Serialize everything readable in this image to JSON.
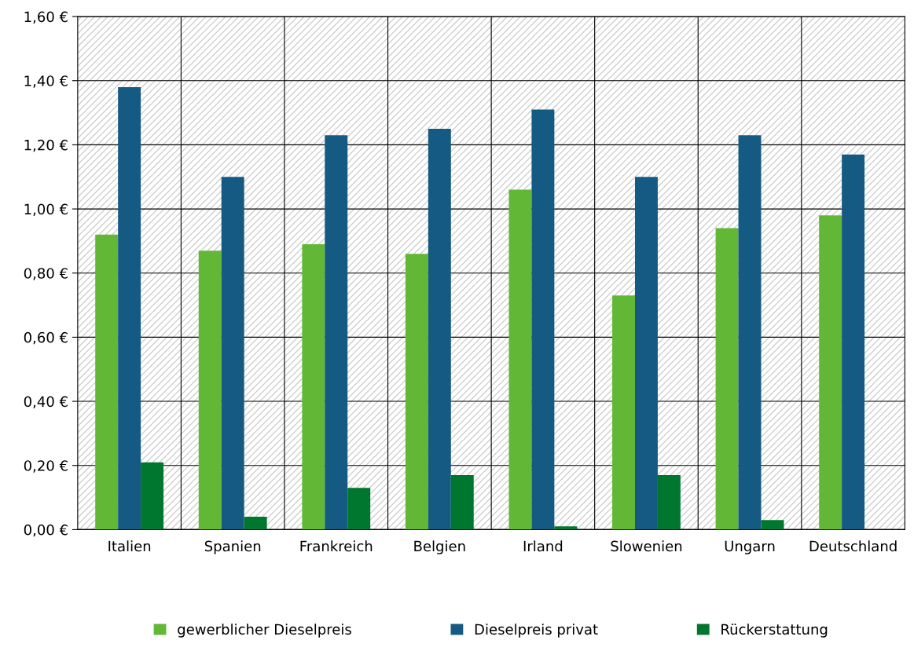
{
  "chart_data": {
    "type": "bar",
    "categories": [
      "Italien",
      "Spanien",
      "Frankreich",
      "Belgien",
      "Irland",
      "Slowenien",
      "Ungarn",
      "Deutschland"
    ],
    "series": [
      {
        "name": "gewerblicher Dieselpreis",
        "color": "#62b836",
        "values": [
          0.92,
          0.87,
          0.89,
          0.86,
          1.06,
          0.73,
          0.94,
          0.98
        ]
      },
      {
        "name": "Dieselpreis privat",
        "color": "#155a82",
        "values": [
          1.38,
          1.1,
          1.23,
          1.25,
          1.31,
          1.1,
          1.23,
          1.17
        ]
      },
      {
        "name": "Rückerstattung",
        "color": "#00772e",
        "values": [
          0.21,
          0.04,
          0.13,
          0.17,
          0.01,
          0.17,
          0.03,
          null
        ]
      }
    ],
    "ylim": [
      0,
      1.6
    ],
    "yticks": [
      {
        "value": 0,
        "label": "0,00 €"
      },
      {
        "value": 0.2,
        "label": "0,20 €"
      },
      {
        "value": 0.4,
        "label": "0,40 €"
      },
      {
        "value": 0.6,
        "label": "0,60 €"
      },
      {
        "value": 0.8,
        "label": "0,80 €"
      },
      {
        "value": 1.0,
        "label": "1,00 €"
      },
      {
        "value": 1.2,
        "label": "1,20 €"
      },
      {
        "value": 1.4,
        "label": "1,40 €"
      },
      {
        "value": 1.6,
        "label": "1,60 €"
      }
    ],
    "grid": true,
    "legend": "bottom"
  }
}
